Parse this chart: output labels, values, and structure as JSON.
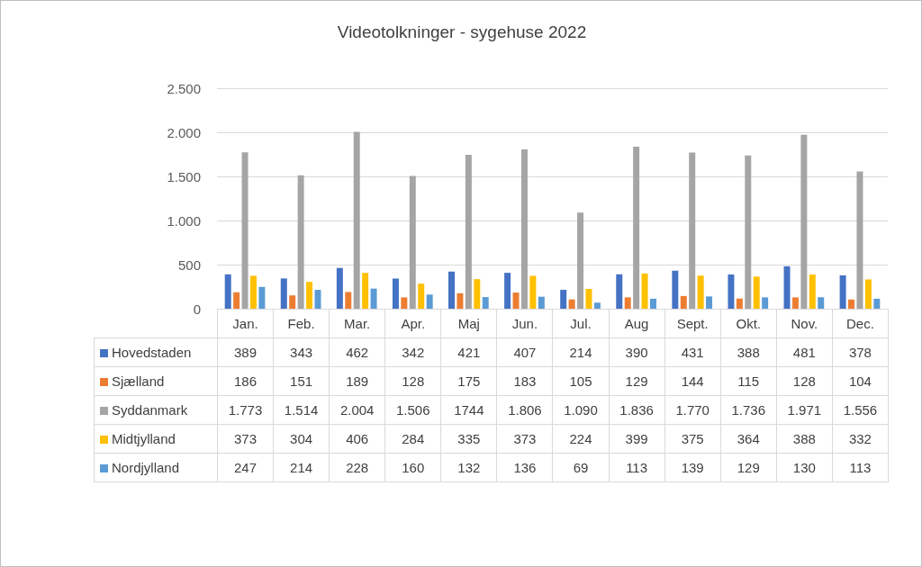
{
  "chart_data": {
    "type": "bar",
    "title": "Videotolkninger - sygehuse 2022",
    "categories": [
      "Jan.",
      "Feb.",
      "Mar.",
      "Apr.",
      "Maj",
      "Jun.",
      "Jul.",
      "Aug",
      "Sept.",
      "Okt.",
      "Nov.",
      "Dec."
    ],
    "series": [
      {
        "name": "Hovedstaden",
        "color": "#4472c4",
        "values": [
          389,
          343,
          462,
          342,
          421,
          407,
          214,
          390,
          431,
          388,
          481,
          378
        ],
        "value_labels": [
          "389",
          "343",
          "462",
          "342",
          "421",
          "407",
          "214",
          "390",
          "431",
          "388",
          "481",
          "378"
        ]
      },
      {
        "name": "Sjælland",
        "color": "#ed7d31",
        "values": [
          186,
          151,
          189,
          128,
          175,
          183,
          105,
          129,
          144,
          115,
          128,
          104
        ],
        "value_labels": [
          "186",
          "151",
          "189",
          "128",
          "175",
          "183",
          "105",
          "129",
          "144",
          "115",
          "128",
          "104"
        ]
      },
      {
        "name": "Syddanmark",
        "color": "#a5a5a5",
        "values": [
          1773,
          1514,
          2004,
          1506,
          1744,
          1806,
          1090,
          1836,
          1770,
          1736,
          1971,
          1556
        ],
        "value_labels": [
          "1.773",
          "1.514",
          "2.004",
          "1.506",
          "1744",
          "1.806",
          "1.090",
          "1.836",
          "1.770",
          "1.736",
          "1.971",
          "1.556"
        ]
      },
      {
        "name": "Midtjylland",
        "color": "#ffc000",
        "values": [
          373,
          304,
          406,
          284,
          335,
          373,
          224,
          399,
          375,
          364,
          388,
          332
        ],
        "value_labels": [
          "373",
          "304",
          "406",
          "284",
          "335",
          "373",
          "224",
          "399",
          "375",
          "364",
          "388",
          "332"
        ]
      },
      {
        "name": "Nordjylland",
        "color": "#5b9bd5",
        "values": [
          247,
          214,
          228,
          160,
          132,
          136,
          69,
          113,
          139,
          129,
          130,
          113
        ],
        "value_labels": [
          "247",
          "214",
          "228",
          "160",
          "132",
          "136",
          "69",
          "113",
          "139",
          "129",
          "130",
          "113"
        ]
      }
    ],
    "ylim": [
      0,
      2500
    ],
    "yticks": [
      0,
      {
        "value": 500,
        "label": "500"
      },
      {
        "value": 1000,
        "label": "1.000"
      },
      {
        "value": 1500,
        "label": "1.500"
      },
      {
        "value": 2000,
        "label": "2.000"
      },
      {
        "value": 2500,
        "label": "2.500"
      }
    ],
    "grid": "y",
    "legend": "bottom"
  }
}
